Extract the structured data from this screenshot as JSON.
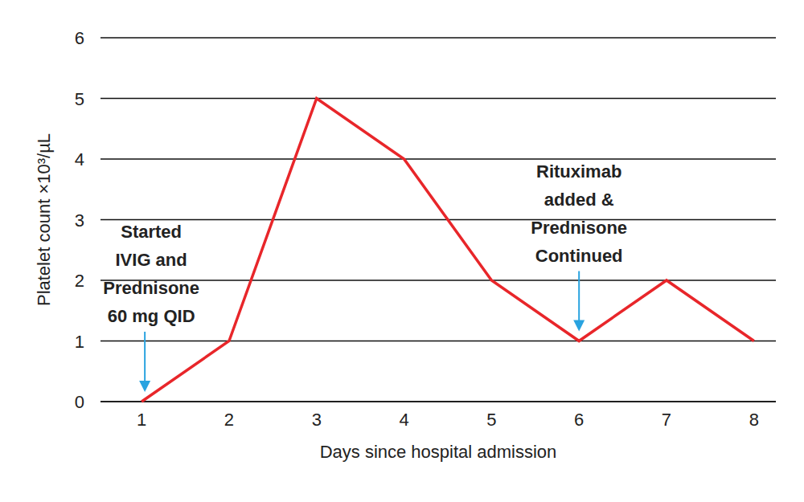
{
  "chart_data": {
    "type": "line",
    "x_label": "Days since hospital admission",
    "y_label": "Platelet count ×10³/µL",
    "x": [
      1,
      2,
      3,
      4,
      5,
      6,
      7,
      8
    ],
    "values": [
      0,
      1,
      5,
      4,
      2,
      1,
      2,
      1
    ],
    "color": "#e8262a",
    "xlim": [
      0.53,
      8.25
    ],
    "ylim": [
      0,
      6
    ],
    "xticks": [
      1,
      2,
      3,
      4,
      5,
      6,
      7,
      8
    ],
    "yticks": [
      0,
      1,
      2,
      3,
      4,
      5,
      6
    ],
    "grid": true,
    "annotations": [
      {
        "lines": [
          "Started",
          "IVIG and",
          "Prednisone",
          "60 mg QID"
        ],
        "x": 1,
        "y": 0,
        "color": "#29a3e0"
      },
      {
        "lines": [
          "Rituximab",
          "added &",
          "Prednisone",
          "Continued"
        ],
        "x": 6,
        "y": 1,
        "color": "#29a3e0"
      }
    ]
  }
}
